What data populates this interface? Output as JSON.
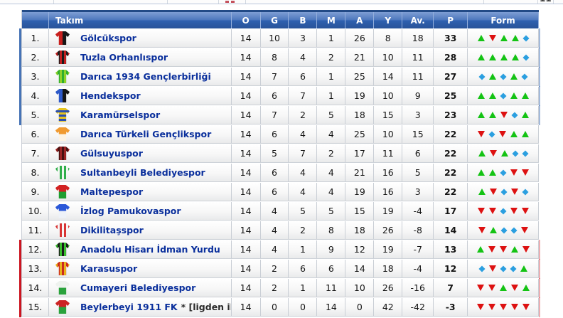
{
  "colors": {
    "accent_promotion": "#4673b6",
    "accent_relegation": "#cc1520",
    "form_win": "#14c314",
    "form_loss": "#dd1111",
    "form_draw": "#2b9fe0",
    "team_link": "#0a2f9c"
  },
  "top_strip": {
    "remnant_value": "11"
  },
  "header": {
    "rank": "",
    "team": "Takım",
    "o": "O",
    "g": "G",
    "b": "B",
    "m": "M",
    "a": "A",
    "y": "Y",
    "av": "Av.",
    "p": "P",
    "form": "Form"
  },
  "table": {
    "rows": [
      {
        "rank": "1.",
        "team": "Gölcükspor",
        "suffix": "",
        "o": 14,
        "g": 10,
        "b": 3,
        "m": 1,
        "a": 26,
        "y": 8,
        "av": 18,
        "p": 33,
        "form": [
          "w",
          "l",
          "w",
          "w",
          "d"
        ],
        "zone": "promotion",
        "jersey": {
          "pattern": "halves",
          "c1": "#c8201e",
          "c2": "#181818"
        }
      },
      {
        "rank": "2.",
        "team": "Tuzla Orhanlıspor",
        "suffix": "",
        "o": 14,
        "g": 8,
        "b": 4,
        "m": 2,
        "a": 21,
        "y": 10,
        "av": 11,
        "p": 28,
        "form": [
          "w",
          "w",
          "w",
          "w",
          "d"
        ],
        "zone": "promotion",
        "jersey": {
          "pattern": "stripes",
          "c1": "#c02020",
          "c2": "#1c1c1c"
        }
      },
      {
        "rank": "3.",
        "team": "Darıca 1934 Gençlerbirliği",
        "suffix": "",
        "o": 14,
        "g": 7,
        "b": 6,
        "m": 1,
        "a": 25,
        "y": 14,
        "av": 11,
        "p": 27,
        "form": [
          "d",
          "w",
          "d",
          "w",
          "d"
        ],
        "zone": "promotion",
        "jersey": {
          "pattern": "stripes",
          "c1": "#8fd22a",
          "c2": "#2fae2f"
        }
      },
      {
        "rank": "4.",
        "team": "Hendekspor",
        "suffix": "",
        "o": 14,
        "g": 6,
        "b": 7,
        "m": 1,
        "a": 19,
        "y": 10,
        "av": 9,
        "p": 25,
        "form": [
          "w",
          "w",
          "d",
          "w",
          "w"
        ],
        "zone": "promotion",
        "jersey": {
          "pattern": "halves",
          "c1": "#2d59c8",
          "c2": "#161616"
        }
      },
      {
        "rank": "5.",
        "team": "Karamürselspor",
        "suffix": "",
        "o": 14,
        "g": 7,
        "b": 2,
        "m": 5,
        "a": 18,
        "y": 15,
        "av": 3,
        "p": 23,
        "form": [
          "w",
          "w",
          "l",
          "d",
          "w"
        ],
        "zone": "promotion",
        "jersey": {
          "pattern": "hoops",
          "c1": "#e6c41e",
          "c2": "#2b4fb0"
        }
      },
      {
        "rank": "6.",
        "team": "Darıca Türkeli Gençlikspor",
        "suffix": "",
        "o": 14,
        "g": 6,
        "b": 4,
        "m": 4,
        "a": 25,
        "y": 10,
        "av": 15,
        "p": 22,
        "form": [
          "l",
          "d",
          "l",
          "w",
          "w"
        ],
        "zone": "",
        "jersey": {
          "pattern": "top",
          "c1": "#f09a30",
          "c2": "#fdf3e2"
        }
      },
      {
        "rank": "7.",
        "team": "Gülsuyuspor",
        "suffix": "",
        "o": 14,
        "g": 5,
        "b": 7,
        "m": 2,
        "a": 17,
        "y": 11,
        "av": 6,
        "p": 22,
        "form": [
          "w",
          "l",
          "w",
          "d",
          "d"
        ],
        "zone": "",
        "jersey": {
          "pattern": "stripes",
          "c1": "#9c2424",
          "c2": "#471010"
        }
      },
      {
        "rank": "8.",
        "team": "Sultanbeyli Belediyespor",
        "suffix": "",
        "o": 14,
        "g": 6,
        "b": 4,
        "m": 4,
        "a": 21,
        "y": 16,
        "av": 5,
        "p": 22,
        "form": [
          "w",
          "w",
          "d",
          "l",
          "l"
        ],
        "zone": "",
        "jersey": {
          "pattern": "stripes",
          "c1": "#2fae4a",
          "c2": "#eef5ee"
        }
      },
      {
        "rank": "9.",
        "team": "Maltepespor",
        "suffix": "",
        "o": 14,
        "g": 6,
        "b": 4,
        "m": 4,
        "a": 19,
        "y": 16,
        "av": 3,
        "p": 22,
        "form": [
          "w",
          "l",
          "d",
          "l",
          "d"
        ],
        "zone": "",
        "jersey": {
          "pattern": "top",
          "c1": "#d22222",
          "c2": "#1f9e30"
        }
      },
      {
        "rank": "10.",
        "team": "İzlog Pamukovaspor",
        "suffix": "",
        "o": 14,
        "g": 4,
        "b": 5,
        "m": 5,
        "a": 15,
        "y": 19,
        "av": -4,
        "p": 17,
        "form": [
          "l",
          "l",
          "d",
          "l",
          "l"
        ],
        "zone": "",
        "jersey": {
          "pattern": "top",
          "c1": "#2b58d8",
          "c2": "#eef2f8"
        }
      },
      {
        "rank": "11.",
        "team": "Dikilitaşspor",
        "suffix": "",
        "o": 14,
        "g": 4,
        "b": 2,
        "m": 8,
        "a": 18,
        "y": 26,
        "av": -8,
        "p": 14,
        "form": [
          "l",
          "w",
          "d",
          "d",
          "l"
        ],
        "zone": "",
        "jersey": {
          "pattern": "stripes",
          "c1": "#d83434",
          "c2": "#f5f5f5"
        }
      },
      {
        "rank": "12.",
        "team": "Anadolu Hisarı İdman Yurdu",
        "suffix": "",
        "o": 14,
        "g": 4,
        "b": 1,
        "m": 9,
        "a": 12,
        "y": 19,
        "av": -7,
        "p": 13,
        "form": [
          "w",
          "l",
          "l",
          "w",
          "l"
        ],
        "zone": "relegation",
        "jersey": {
          "pattern": "stripes",
          "c1": "#39bd2e",
          "c2": "#1a1a1a"
        }
      },
      {
        "rank": "13.",
        "team": "Karasuspor",
        "suffix": "",
        "o": 14,
        "g": 2,
        "b": 6,
        "m": 6,
        "a": 14,
        "y": 18,
        "av": -4,
        "p": 12,
        "form": [
          "d",
          "l",
          "d",
          "d",
          "w"
        ],
        "zone": "relegation",
        "jersey": {
          "pattern": "stripes",
          "c1": "#e8b21e",
          "c2": "#cc2a1e"
        }
      },
      {
        "rank": "14.",
        "team": "Cumayeri Belediyespor",
        "suffix": "",
        "o": 14,
        "g": 2,
        "b": 1,
        "m": 11,
        "a": 10,
        "y": 26,
        "av": -16,
        "p": 7,
        "form": [
          "l",
          "l",
          "w",
          "l",
          "w"
        ],
        "zone": "relegation",
        "jersey": {
          "pattern": "top",
          "c1": "#eef2ee",
          "c2": "#2aa23c"
        }
      },
      {
        "rank": "15.",
        "team": "Beylerbeyi 1911 FK",
        "suffix": "* [ligden ihraç]",
        "o": 14,
        "g": 0,
        "b": 0,
        "m": 14,
        "a": 0,
        "y": 42,
        "av": -42,
        "p": -3,
        "form": [
          "l",
          "l",
          "l",
          "l",
          "l"
        ],
        "zone": "relegation",
        "jersey": {
          "pattern": "top",
          "c1": "#cc2424",
          "c2": "#2aa23c"
        }
      }
    ]
  }
}
